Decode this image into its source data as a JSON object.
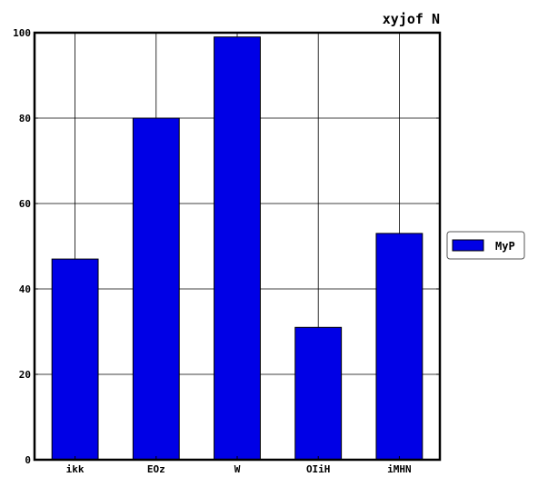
{
  "chart_data": {
    "type": "bar",
    "title": "xyjof N",
    "xlabel": "",
    "ylabel": "",
    "categories": [
      "ikk",
      "EOz",
      "W",
      "OIiH",
      "iMHN"
    ],
    "series": [
      {
        "name": "MyP",
        "values": [
          47,
          80,
          99,
          31,
          53
        ],
        "color": "#0000e6"
      }
    ],
    "ylim": [
      0,
      100
    ],
    "yticks": [
      0,
      20,
      40,
      60,
      80,
      100
    ],
    "grid": true,
    "legend_position": "right"
  }
}
